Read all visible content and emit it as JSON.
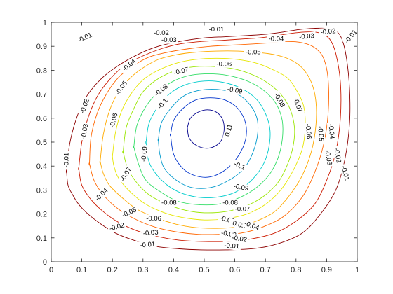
{
  "chart_data": {
    "type": "contour",
    "title": "",
    "xlabel": "",
    "ylabel": "",
    "xlim": [
      0,
      1
    ],
    "ylim": [
      0,
      1
    ],
    "grid": false,
    "legend": "none",
    "xticks": [
      "0",
      "0.1",
      "0.2",
      "0.3",
      "0.4",
      "0.5",
      "0.6",
      "0.7",
      "0.8",
      "0.9",
      "1"
    ],
    "yticks": [
      "0",
      "0.1",
      "0.2",
      "0.3",
      "0.4",
      "0.5",
      "0.6",
      "0.7",
      "0.8",
      "0.9",
      "1"
    ],
    "levels": [
      -0.01,
      -0.02,
      -0.03,
      -0.04,
      -0.05,
      -0.06,
      -0.07,
      -0.08,
      -0.09,
      -0.1,
      -0.11
    ],
    "level_colors": [
      "#8c0000",
      "#cc1a00",
      "#ff6600",
      "#ffaa00",
      "#e6e600",
      "#99e600",
      "#33dd66",
      "#00cccc",
      "#0099cc",
      "#0033cc",
      "#00008c"
    ],
    "vortex_center": [
      0.52,
      0.56
    ],
    "contours": [
      {
        "level": -0.01,
        "x": [
          0.05,
          0.06,
          0.08,
          0.11,
          0.16,
          0.22,
          0.29,
          0.35,
          0.42,
          0.5,
          0.57,
          0.64,
          0.7,
          0.76,
          0.81,
          0.86,
          0.9,
          0.93,
          0.95,
          0.965,
          0.975,
          0.975,
          0.96,
          0.93,
          0.88,
          0.82,
          0.74,
          0.66,
          0.57,
          0.49,
          0.41,
          0.34,
          0.27,
          0.21,
          0.16,
          0.12,
          0.09,
          0.07,
          0.055,
          0.05
        ],
        "y": [
          0.38,
          0.49,
          0.59,
          0.68,
          0.76,
          0.82,
          0.87,
          0.9,
          0.92,
          0.935,
          0.94,
          0.945,
          0.95,
          0.96,
          0.97,
          0.975,
          0.975,
          0.965,
          0.93,
          0.85,
          0.72,
          0.58,
          0.43,
          0.3,
          0.2,
          0.12,
          0.075,
          0.055,
          0.05,
          0.05,
          0.055,
          0.065,
          0.09,
          0.12,
          0.16,
          0.2,
          0.24,
          0.28,
          0.32,
          0.38
        ]
      },
      {
        "level": -0.02,
        "x": [
          0.09,
          0.1,
          0.12,
          0.15,
          0.19,
          0.24,
          0.3,
          0.36,
          0.42,
          0.49,
          0.56,
          0.62,
          0.68,
          0.74,
          0.79,
          0.84,
          0.88,
          0.91,
          0.93,
          0.945,
          0.945,
          0.93,
          0.9,
          0.86,
          0.8,
          0.73,
          0.65,
          0.57,
          0.49,
          0.42,
          0.35,
          0.28,
          0.22,
          0.17,
          0.13,
          0.1,
          0.09
        ],
        "y": [
          0.39,
          0.5,
          0.6,
          0.69,
          0.76,
          0.82,
          0.86,
          0.89,
          0.91,
          0.92,
          0.925,
          0.93,
          0.935,
          0.945,
          0.955,
          0.96,
          0.955,
          0.93,
          0.87,
          0.75,
          0.6,
          0.46,
          0.34,
          0.24,
          0.17,
          0.12,
          0.095,
          0.085,
          0.085,
          0.09,
          0.105,
          0.13,
          0.165,
          0.21,
          0.26,
          0.32,
          0.39
        ]
      },
      {
        "level": -0.03,
        "x": [
          0.125,
          0.13,
          0.15,
          0.18,
          0.22,
          0.27,
          0.32,
          0.38,
          0.45,
          0.52,
          0.59,
          0.66,
          0.72,
          0.77,
          0.82,
          0.86,
          0.89,
          0.905,
          0.905,
          0.89,
          0.86,
          0.82,
          0.76,
          0.69,
          0.62,
          0.55,
          0.48,
          0.41,
          0.34,
          0.28,
          0.22,
          0.17,
          0.14,
          0.125
        ],
        "y": [
          0.41,
          0.52,
          0.62,
          0.7,
          0.77,
          0.82,
          0.855,
          0.875,
          0.89,
          0.9,
          0.905,
          0.91,
          0.915,
          0.92,
          0.915,
          0.895,
          0.85,
          0.76,
          0.62,
          0.49,
          0.37,
          0.27,
          0.19,
          0.145,
          0.12,
          0.115,
          0.115,
          0.125,
          0.145,
          0.175,
          0.22,
          0.28,
          0.34,
          0.41
        ]
      },
      {
        "level": -0.04,
        "x": [
          0.16,
          0.17,
          0.19,
          0.22,
          0.26,
          0.3,
          0.35,
          0.41,
          0.47,
          0.54,
          0.61,
          0.67,
          0.73,
          0.78,
          0.82,
          0.85,
          0.865,
          0.865,
          0.85,
          0.82,
          0.78,
          0.73,
          0.67,
          0.6,
          0.53,
          0.46,
          0.4,
          0.34,
          0.28,
          0.23,
          0.19,
          0.17,
          0.16
        ],
        "y": [
          0.42,
          0.53,
          0.63,
          0.71,
          0.77,
          0.81,
          0.845,
          0.865,
          0.875,
          0.88,
          0.88,
          0.875,
          0.865,
          0.845,
          0.81,
          0.75,
          0.67,
          0.57,
          0.46,
          0.36,
          0.28,
          0.21,
          0.17,
          0.145,
          0.14,
          0.145,
          0.16,
          0.185,
          0.22,
          0.27,
          0.32,
          0.37,
          0.42
        ]
      },
      {
        "level": -0.05,
        "x": [
          0.2,
          0.21,
          0.23,
          0.26,
          0.3,
          0.35,
          0.41,
          0.47,
          0.54,
          0.61,
          0.67,
          0.72,
          0.77,
          0.8,
          0.825,
          0.83,
          0.82,
          0.79,
          0.75,
          0.7,
          0.64,
          0.57,
          0.5,
          0.43,
          0.37,
          0.31,
          0.26,
          0.22,
          0.205,
          0.2
        ],
        "y": [
          0.44,
          0.54,
          0.63,
          0.7,
          0.76,
          0.8,
          0.83,
          0.845,
          0.85,
          0.845,
          0.83,
          0.805,
          0.77,
          0.72,
          0.65,
          0.56,
          0.47,
          0.38,
          0.3,
          0.24,
          0.2,
          0.18,
          0.175,
          0.185,
          0.205,
          0.24,
          0.29,
          0.35,
          0.4,
          0.44
        ]
      },
      {
        "level": -0.06,
        "x": [
          0.235,
          0.245,
          0.27,
          0.3,
          0.35,
          0.41,
          0.47,
          0.54,
          0.6,
          0.66,
          0.71,
          0.75,
          0.78,
          0.795,
          0.79,
          0.77,
          0.74,
          0.69,
          0.63,
          0.57,
          0.5,
          0.44,
          0.38,
          0.32,
          0.28,
          0.25,
          0.235
        ],
        "y": [
          0.46,
          0.56,
          0.64,
          0.71,
          0.765,
          0.8,
          0.815,
          0.815,
          0.805,
          0.78,
          0.745,
          0.7,
          0.64,
          0.56,
          0.48,
          0.4,
          0.33,
          0.27,
          0.23,
          0.21,
          0.205,
          0.215,
          0.24,
          0.28,
          0.33,
          0.39,
          0.46
        ]
      },
      {
        "level": -0.07,
        "x": [
          0.27,
          0.28,
          0.31,
          0.35,
          0.4,
          0.46,
          0.53,
          0.59,
          0.65,
          0.7,
          0.735,
          0.755,
          0.755,
          0.74,
          0.71,
          0.66,
          0.6,
          0.54,
          0.47,
          0.41,
          0.36,
          0.31,
          0.285,
          0.27
        ],
        "y": [
          0.48,
          0.57,
          0.65,
          0.71,
          0.755,
          0.78,
          0.785,
          0.775,
          0.75,
          0.71,
          0.66,
          0.59,
          0.51,
          0.43,
          0.36,
          0.3,
          0.26,
          0.24,
          0.24,
          0.255,
          0.29,
          0.34,
          0.41,
          0.48
        ]
      },
      {
        "level": -0.08,
        "x": [
          0.31,
          0.32,
          0.35,
          0.39,
          0.44,
          0.5,
          0.56,
          0.62,
          0.67,
          0.7,
          0.715,
          0.71,
          0.69,
          0.65,
          0.6,
          0.54,
          0.48,
          0.42,
          0.37,
          0.33,
          0.315,
          0.31
        ],
        "y": [
          0.5,
          0.58,
          0.65,
          0.705,
          0.74,
          0.755,
          0.75,
          0.725,
          0.68,
          0.62,
          0.55,
          0.47,
          0.4,
          0.335,
          0.29,
          0.27,
          0.27,
          0.29,
          0.33,
          0.39,
          0.44,
          0.5
        ]
      },
      {
        "level": -0.09,
        "x": [
          0.35,
          0.36,
          0.39,
          0.43,
          0.48,
          0.54,
          0.6,
          0.64,
          0.67,
          0.675,
          0.66,
          0.63,
          0.58,
          0.52,
          0.46,
          0.41,
          0.37,
          0.355,
          0.35
        ],
        "y": [
          0.51,
          0.58,
          0.64,
          0.69,
          0.715,
          0.72,
          0.705,
          0.67,
          0.61,
          0.54,
          0.46,
          0.39,
          0.34,
          0.31,
          0.31,
          0.34,
          0.39,
          0.45,
          0.51
        ]
      },
      {
        "level": -0.1,
        "x": [
          0.39,
          0.4,
          0.43,
          0.47,
          0.52,
          0.57,
          0.61,
          0.635,
          0.635,
          0.61,
          0.57,
          0.52,
          0.47,
          0.43,
          0.4,
          0.39
        ],
        "y": [
          0.53,
          0.59,
          0.64,
          0.675,
          0.685,
          0.675,
          0.64,
          0.58,
          0.51,
          0.44,
          0.385,
          0.355,
          0.36,
          0.39,
          0.45,
          0.53
        ]
      },
      {
        "level": -0.11,
        "x": [
          0.445,
          0.455,
          0.48,
          0.51,
          0.54,
          0.56,
          0.565,
          0.555,
          0.53,
          0.5,
          0.47,
          0.45,
          0.445
        ],
        "y": [
          0.56,
          0.6,
          0.625,
          0.635,
          0.625,
          0.595,
          0.55,
          0.505,
          0.48,
          0.475,
          0.49,
          0.52,
          0.56
        ]
      }
    ],
    "level_labels": [
      {
        "text": "-0.01",
        "x": 0.11,
        "y": 0.935,
        "rot": -25
      },
      {
        "text": "-0.02",
        "x": 0.36,
        "y": 0.955,
        "rot": 0
      },
      {
        "text": "-0.01",
        "x": 0.54,
        "y": 0.97,
        "rot": 0
      },
      {
        "text": "-0.03",
        "x": 0.385,
        "y": 0.925,
        "rot": 0
      },
      {
        "text": "-0.04",
        "x": 0.735,
        "y": 0.93,
        "rot": 0
      },
      {
        "text": "-0.03",
        "x": 0.835,
        "y": 0.94,
        "rot": -5
      },
      {
        "text": "-0.02",
        "x": 0.905,
        "y": 0.96,
        "rot": -5
      },
      {
        "text": "-0.01",
        "x": 0.98,
        "y": 0.94,
        "rot": -50
      },
      {
        "text": "-0.05",
        "x": 0.66,
        "y": 0.875,
        "rot": 0
      },
      {
        "text": "-0.06",
        "x": 0.565,
        "y": 0.825,
        "rot": 0
      },
      {
        "text": "-0.04",
        "x": 0.255,
        "y": 0.82,
        "rot": -40
      },
      {
        "text": "-0.07",
        "x": 0.425,
        "y": 0.795,
        "rot": -15
      },
      {
        "text": "-0.05",
        "x": 0.23,
        "y": 0.725,
        "rot": -55
      },
      {
        "text": "-0.08",
        "x": 0.36,
        "y": 0.715,
        "rot": -40
      },
      {
        "text": "-0.09",
        "x": 0.6,
        "y": 0.715,
        "rot": 10
      },
      {
        "text": "-0.08",
        "x": 0.745,
        "y": 0.675,
        "rot": 60
      },
      {
        "text": "-0.07",
        "x": 0.805,
        "y": 0.655,
        "rot": 70
      },
      {
        "text": "-0.1",
        "x": 0.365,
        "y": 0.66,
        "rot": -50
      },
      {
        "text": "-0.02",
        "x": 0.11,
        "y": 0.65,
        "rot": -70
      },
      {
        "text": "-0.06",
        "x": 0.205,
        "y": 0.59,
        "rot": -75
      },
      {
        "text": "-0.03",
        "x": 0.11,
        "y": 0.545,
        "rot": -80
      },
      {
        "text": "-0.11",
        "x": 0.58,
        "y": 0.545,
        "rot": -75
      },
      {
        "text": "-0.06",
        "x": 0.84,
        "y": 0.545,
        "rot": 85
      },
      {
        "text": "-0.05",
        "x": 0.88,
        "y": 0.535,
        "rot": 85
      },
      {
        "text": "-0.04",
        "x": 0.915,
        "y": 0.545,
        "rot": 85
      },
      {
        "text": "-0.09",
        "x": 0.305,
        "y": 0.45,
        "rot": -85
      },
      {
        "text": "-0.01",
        "x": 0.05,
        "y": 0.425,
        "rot": -90
      },
      {
        "text": "-0.03",
        "x": 0.905,
        "y": 0.435,
        "rot": 80
      },
      {
        "text": "-0.02",
        "x": 0.935,
        "y": 0.445,
        "rot": 80
      },
      {
        "text": "-0.1",
        "x": 0.615,
        "y": 0.4,
        "rot": 25
      },
      {
        "text": "-0.01",
        "x": 0.96,
        "y": 0.37,
        "rot": 75
      },
      {
        "text": "-0.07",
        "x": 0.245,
        "y": 0.365,
        "rot": -60
      },
      {
        "text": "-0.09",
        "x": 0.62,
        "y": 0.31,
        "rot": 10
      },
      {
        "text": "-0.04",
        "x": 0.165,
        "y": 0.28,
        "rot": -45
      },
      {
        "text": "-0.08",
        "x": 0.385,
        "y": 0.245,
        "rot": 0
      },
      {
        "text": "-0.08",
        "x": 0.585,
        "y": 0.245,
        "rot": 0
      },
      {
        "text": "-0.07",
        "x": 0.625,
        "y": 0.22,
        "rot": 0
      },
      {
        "text": "-0.05",
        "x": 0.255,
        "y": 0.205,
        "rot": -25
      },
      {
        "text": "-0.06",
        "x": 0.335,
        "y": 0.18,
        "rot": 0
      },
      {
        "text": "-0.06",
        "x": 0.575,
        "y": 0.175,
        "rot": 15
      },
      {
        "text": "-0.05",
        "x": 0.61,
        "y": 0.155,
        "rot": 15
      },
      {
        "text": "-0.04",
        "x": 0.655,
        "y": 0.15,
        "rot": 20
      },
      {
        "text": "-0.02",
        "x": 0.215,
        "y": 0.145,
        "rot": -15
      },
      {
        "text": "-0.03",
        "x": 0.325,
        "y": 0.12,
        "rot": -5
      },
      {
        "text": "-0.03",
        "x": 0.58,
        "y": 0.115,
        "rot": 10
      },
      {
        "text": "-0.02",
        "x": 0.615,
        "y": 0.095,
        "rot": 10
      },
      {
        "text": "-0.01",
        "x": 0.315,
        "y": 0.07,
        "rot": -5
      },
      {
        "text": "-0.01",
        "x": 0.59,
        "y": 0.065,
        "rot": 5
      }
    ]
  }
}
